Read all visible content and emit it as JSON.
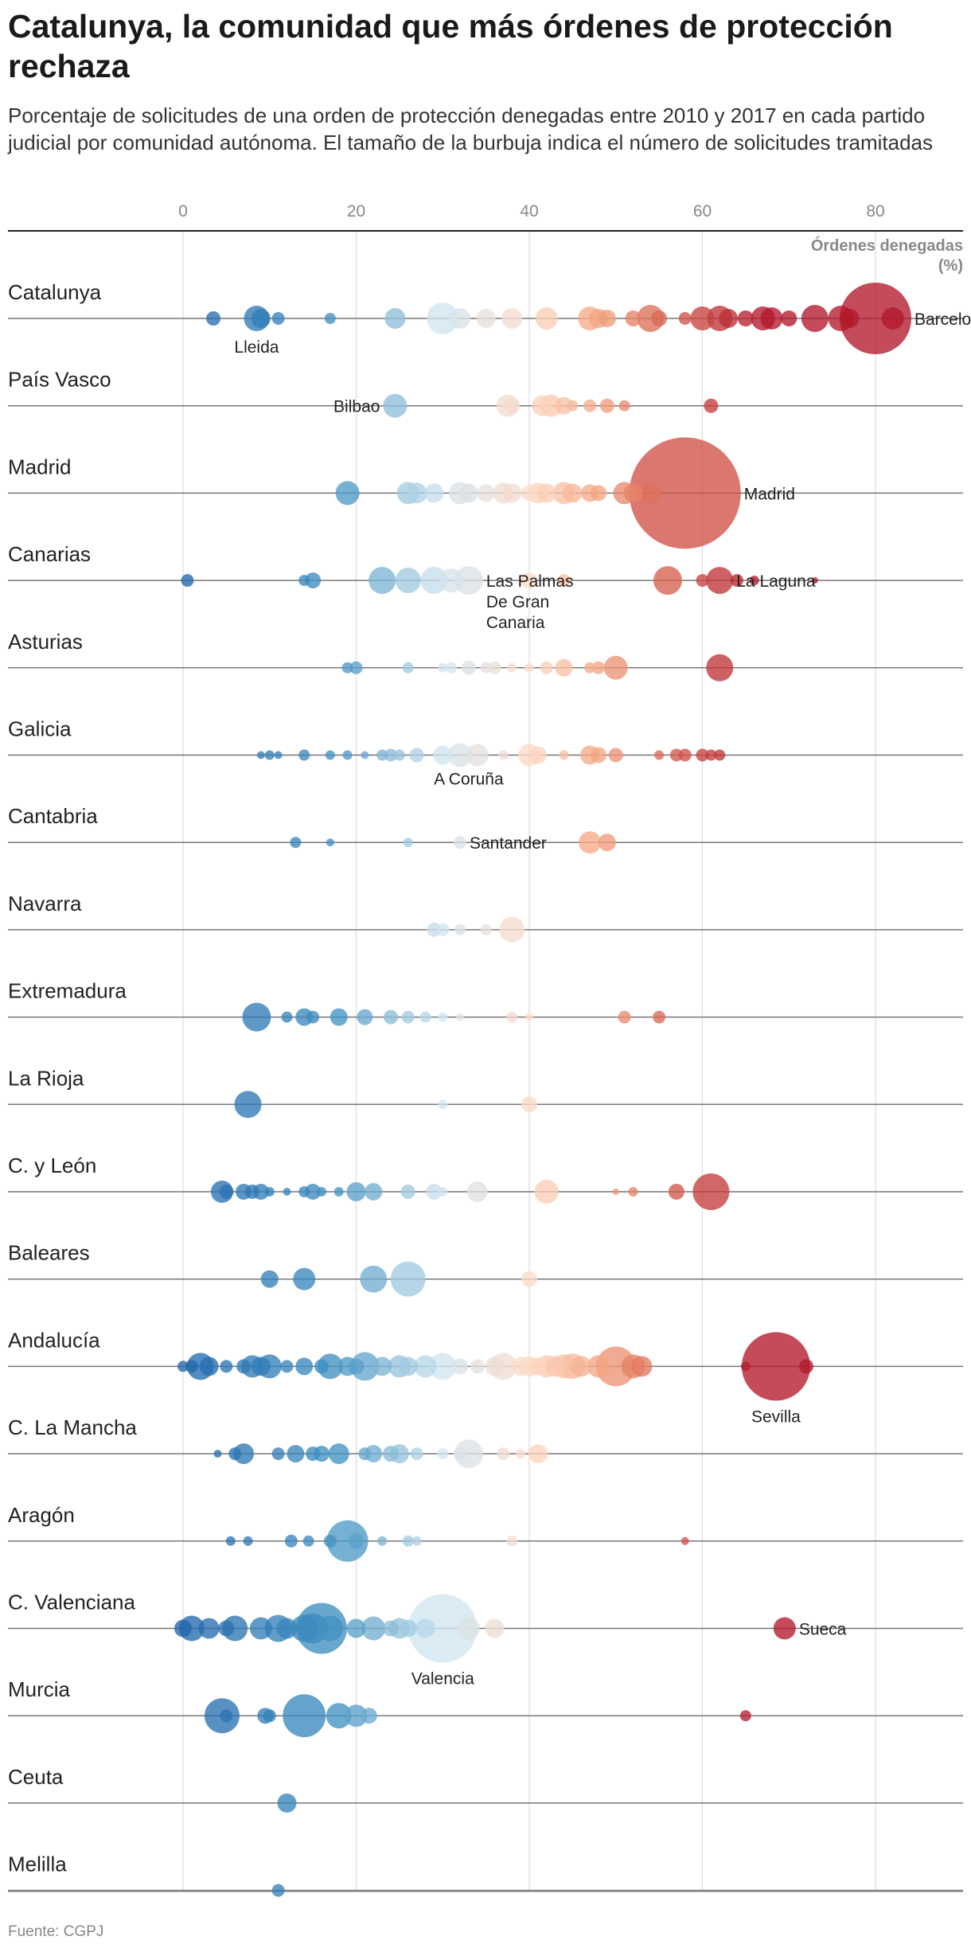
{
  "title": "Catalunya, la comunidad que más órdenes de protección rechaza",
  "subtitle": "Porcentaje de solicitudes de una orden de protección denegadas entre 2010 y 2017 en cada partido judicial por comunidad autónoma. El tamaño de la burbuja indica el número de solicitudes tramitadas",
  "source": "Fuente: CGPJ",
  "chart_data": {
    "type": "scatter",
    "xlim": [
      -20,
      90
    ],
    "xticks": [
      0,
      20,
      40,
      60,
      80
    ],
    "size_unit_label_line1": "Órdenes denegadas",
    "size_unit_label_line2": "(%)",
    "legend": "none",
    "color_scale": {
      "low": "#2166ac",
      "mid": "#f7f7f7",
      "high": "#b2182b"
    },
    "rows": [
      {
        "name": "Catalunya",
        "points": [
          [
            3.5,
            9
          ],
          [
            8.5,
            16
          ],
          [
            9,
            12
          ],
          [
            11,
            8
          ],
          [
            17,
            7
          ],
          [
            24.5,
            13
          ],
          [
            30,
            20
          ],
          [
            32,
            13
          ],
          [
            35,
            12
          ],
          [
            38,
            13
          ],
          [
            42,
            14
          ],
          [
            47,
            15
          ],
          [
            48,
            12
          ],
          [
            49,
            11
          ],
          [
            52,
            10
          ],
          [
            54,
            17
          ],
          [
            55,
            10
          ],
          [
            58,
            8
          ],
          [
            60,
            15
          ],
          [
            62,
            16
          ],
          [
            63,
            12
          ],
          [
            65,
            10
          ],
          [
            67,
            15
          ],
          [
            68,
            14
          ],
          [
            70,
            10
          ],
          [
            73,
            17
          ],
          [
            76,
            16
          ],
          [
            77,
            12
          ],
          [
            80,
            45
          ],
          [
            82,
            14
          ]
        ],
        "labels": [
          {
            "text": "Lleida",
            "x": 8.5,
            "pos": "below"
          },
          {
            "text": "Barcelona",
            "x": 80,
            "pos": "right"
          }
        ]
      },
      {
        "name": "País Vasco",
        "points": [
          [
            24.5,
            15
          ],
          [
            37.5,
            14
          ],
          [
            38,
            10
          ],
          [
            41.5,
            13
          ],
          [
            42.5,
            14
          ],
          [
            44,
            11
          ],
          [
            45,
            7
          ],
          [
            47,
            8
          ],
          [
            49,
            9
          ],
          [
            51,
            7
          ],
          [
            61,
            9
          ]
        ],
        "labels": [
          {
            "text": "Bilbao",
            "x": 24.5,
            "pos": "left"
          }
        ]
      },
      {
        "name": "Madrid",
        "points": [
          [
            19,
            15
          ],
          [
            26,
            14
          ],
          [
            27,
            13
          ],
          [
            29,
            12
          ],
          [
            32,
            14
          ],
          [
            33,
            12
          ],
          [
            35,
            11
          ],
          [
            37,
            13
          ],
          [
            38,
            12
          ],
          [
            40,
            10
          ],
          [
            41,
            13
          ],
          [
            42,
            12
          ],
          [
            44,
            14
          ],
          [
            45,
            12
          ],
          [
            47,
            11
          ],
          [
            48,
            10
          ],
          [
            51,
            14
          ],
          [
            52,
            12
          ],
          [
            54,
            13
          ],
          [
            58,
            70
          ]
        ],
        "labels": [
          {
            "text": "Madrid",
            "x": 58,
            "pos": "right"
          }
        ]
      },
      {
        "name": "Canarias",
        "points": [
          [
            0.5,
            8
          ],
          [
            14,
            7
          ],
          [
            15,
            10
          ],
          [
            23,
            17
          ],
          [
            26,
            16
          ],
          [
            29,
            17
          ],
          [
            31,
            15
          ],
          [
            33,
            18
          ],
          [
            40,
            10
          ],
          [
            44,
            8
          ],
          [
            56,
            18
          ],
          [
            60,
            8
          ],
          [
            62,
            17
          ],
          [
            64,
            8
          ],
          [
            66,
            6
          ],
          [
            73,
            4
          ]
        ],
        "labels": [
          {
            "text": "Las Palmas\nDe Gran\nCanaria",
            "x": 33,
            "pos": "right"
          },
          {
            "text": "La Laguna",
            "x": 62,
            "pos": "right"
          }
        ]
      },
      {
        "name": "Asturias",
        "points": [
          [
            19,
            7
          ],
          [
            20,
            8
          ],
          [
            26,
            7
          ],
          [
            30,
            6
          ],
          [
            31,
            7
          ],
          [
            33,
            9
          ],
          [
            35,
            7
          ],
          [
            36,
            8
          ],
          [
            38,
            6
          ],
          [
            40,
            6
          ],
          [
            42,
            8
          ],
          [
            44,
            11
          ],
          [
            47,
            7
          ],
          [
            48,
            8
          ],
          [
            50,
            15
          ],
          [
            62,
            17
          ]
        ],
        "labels": []
      },
      {
        "name": "Galicia",
        "points": [
          [
            9,
            5
          ],
          [
            10,
            6
          ],
          [
            11,
            5
          ],
          [
            14,
            7
          ],
          [
            17,
            6
          ],
          [
            19,
            6
          ],
          [
            21,
            5
          ],
          [
            23,
            7
          ],
          [
            24,
            8
          ],
          [
            25,
            7
          ],
          [
            27,
            9
          ],
          [
            30,
            12
          ],
          [
            32,
            15
          ],
          [
            34,
            14
          ],
          [
            37,
            6
          ],
          [
            40,
            14
          ],
          [
            41,
            11
          ],
          [
            44,
            6
          ],
          [
            47,
            12
          ],
          [
            48,
            10
          ],
          [
            50,
            9
          ],
          [
            55,
            6
          ],
          [
            57,
            8
          ],
          [
            58,
            8
          ],
          [
            60,
            8
          ],
          [
            61,
            7
          ],
          [
            62,
            7
          ]
        ],
        "labels": [
          {
            "text": "A Coruña",
            "x": 33,
            "pos": "below"
          }
        ]
      },
      {
        "name": "Cantabria",
        "points": [
          [
            13,
            7
          ],
          [
            17,
            5
          ],
          [
            26,
            6
          ],
          [
            32,
            8
          ],
          [
            47,
            14
          ],
          [
            49,
            11
          ]
        ],
        "labels": [
          {
            "text": "Santander",
            "x": 32,
            "pos": "right"
          }
        ]
      },
      {
        "name": "Navarra",
        "points": [
          [
            29,
            9
          ],
          [
            30,
            8
          ],
          [
            32,
            7
          ],
          [
            35,
            7
          ],
          [
            38,
            16
          ]
        ],
        "labels": []
      },
      {
        "name": "Extremadura",
        "points": [
          [
            8.5,
            18
          ],
          [
            12,
            7
          ],
          [
            14,
            11
          ],
          [
            15,
            8
          ],
          [
            18,
            11
          ],
          [
            21,
            10
          ],
          [
            24,
            9
          ],
          [
            26,
            8
          ],
          [
            28,
            7
          ],
          [
            30,
            6
          ],
          [
            32,
            5
          ],
          [
            38,
            7
          ],
          [
            40,
            5
          ],
          [
            51,
            8
          ],
          [
            55,
            8
          ]
        ],
        "labels": []
      },
      {
        "name": "La Rioja",
        "points": [
          [
            7.5,
            17
          ],
          [
            30,
            6
          ],
          [
            40,
            10
          ]
        ],
        "labels": []
      },
      {
        "name": "C. y León",
        "points": [
          [
            4.5,
            14
          ],
          [
            5,
            9
          ],
          [
            7,
            10
          ],
          [
            8,
            9
          ],
          [
            9,
            10
          ],
          [
            10,
            6
          ],
          [
            12,
            5
          ],
          [
            14,
            7
          ],
          [
            15,
            10
          ],
          [
            16,
            6
          ],
          [
            18,
            6
          ],
          [
            20,
            12
          ],
          [
            22,
            11
          ],
          [
            26,
            9
          ],
          [
            29,
            10
          ],
          [
            30,
            6
          ],
          [
            34,
            13
          ],
          [
            42,
            15
          ],
          [
            50,
            4
          ],
          [
            52,
            6
          ],
          [
            57,
            10
          ],
          [
            61,
            23
          ]
        ],
        "labels": []
      },
      {
        "name": "Baleares",
        "points": [
          [
            10,
            11
          ],
          [
            14,
            14
          ],
          [
            22,
            17
          ],
          [
            26,
            22
          ],
          [
            40,
            10
          ]
        ],
        "labels": []
      },
      {
        "name": "Andalucía",
        "points": [
          [
            0,
            7
          ],
          [
            1,
            8
          ],
          [
            2,
            17
          ],
          [
            3,
            12
          ],
          [
            5,
            8
          ],
          [
            7,
            9
          ],
          [
            8,
            14
          ],
          [
            9,
            12
          ],
          [
            10,
            15
          ],
          [
            12,
            8
          ],
          [
            14,
            11
          ],
          [
            16,
            9
          ],
          [
            17,
            16
          ],
          [
            19,
            12
          ],
          [
            20,
            10
          ],
          [
            21,
            18
          ],
          [
            23,
            12
          ],
          [
            25,
            14
          ],
          [
            26,
            12
          ],
          [
            28,
            14
          ],
          [
            30,
            17
          ],
          [
            32,
            10
          ],
          [
            34,
            9
          ],
          [
            36,
            12
          ],
          [
            37,
            17
          ],
          [
            39,
            12
          ],
          [
            40,
            13
          ],
          [
            41,
            11
          ],
          [
            42,
            14
          ],
          [
            43,
            13
          ],
          [
            44,
            15
          ],
          [
            45,
            16
          ],
          [
            46,
            13
          ],
          [
            48,
            14
          ],
          [
            50,
            25
          ],
          [
            52,
            15
          ],
          [
            53,
            13
          ],
          [
            65,
            6
          ],
          [
            68.5,
            43
          ],
          [
            72,
            9
          ]
        ],
        "labels": [
          {
            "text": "Sevilla",
            "x": 68.5,
            "pos": "below"
          }
        ]
      },
      {
        "name": "C. La Mancha",
        "points": [
          [
            4,
            5
          ],
          [
            6,
            8
          ],
          [
            7,
            13
          ],
          [
            11,
            8
          ],
          [
            13,
            11
          ],
          [
            15,
            9
          ],
          [
            16,
            10
          ],
          [
            18,
            13
          ],
          [
            21,
            8
          ],
          [
            22,
            11
          ],
          [
            24,
            10
          ],
          [
            25,
            12
          ],
          [
            27,
            8
          ],
          [
            30,
            7
          ],
          [
            32,
            8
          ],
          [
            33,
            18
          ],
          [
            37,
            8
          ],
          [
            39,
            6
          ],
          [
            41,
            12
          ]
        ],
        "labels": []
      },
      {
        "name": "Aragón",
        "points": [
          [
            5.5,
            6
          ],
          [
            7.5,
            6
          ],
          [
            12.5,
            8
          ],
          [
            14.5,
            7
          ],
          [
            17,
            8
          ],
          [
            19,
            26
          ],
          [
            20,
            10
          ],
          [
            23,
            6
          ],
          [
            26,
            7
          ],
          [
            27,
            6
          ],
          [
            38,
            7
          ],
          [
            58,
            5
          ]
        ],
        "labels": []
      },
      {
        "name": "C. Valenciana",
        "points": [
          [
            0,
            11
          ],
          [
            1,
            16
          ],
          [
            3,
            13
          ],
          [
            5,
            10
          ],
          [
            6,
            16
          ],
          [
            9,
            14
          ],
          [
            11,
            17
          ],
          [
            12,
            13
          ],
          [
            14,
            17
          ],
          [
            15,
            19
          ],
          [
            16,
            32
          ],
          [
            17,
            16
          ],
          [
            20,
            12
          ],
          [
            22,
            15
          ],
          [
            24,
            10
          ],
          [
            25,
            13
          ],
          [
            26,
            11
          ],
          [
            28,
            12
          ],
          [
            30,
            43
          ],
          [
            33,
            14
          ],
          [
            36,
            12
          ],
          [
            69.5,
            14
          ]
        ],
        "labels": [
          {
            "text": "Valencia",
            "x": 30,
            "pos": "below"
          },
          {
            "text": "Sueca",
            "x": 69.5,
            "pos": "right"
          }
        ]
      },
      {
        "name": "Murcia",
        "points": [
          [
            4.5,
            22
          ],
          [
            5,
            8
          ],
          [
            9.5,
            10
          ],
          [
            10,
            8
          ],
          [
            14,
            27
          ],
          [
            18,
            16
          ],
          [
            20,
            14
          ],
          [
            21.5,
            10
          ],
          [
            65,
            7
          ]
        ],
        "labels": []
      },
      {
        "name": "Ceuta",
        "points": [
          [
            12,
            12
          ]
        ],
        "labels": []
      },
      {
        "name": "Melilla",
        "points": [
          [
            11,
            8
          ]
        ],
        "labels": []
      }
    ]
  }
}
